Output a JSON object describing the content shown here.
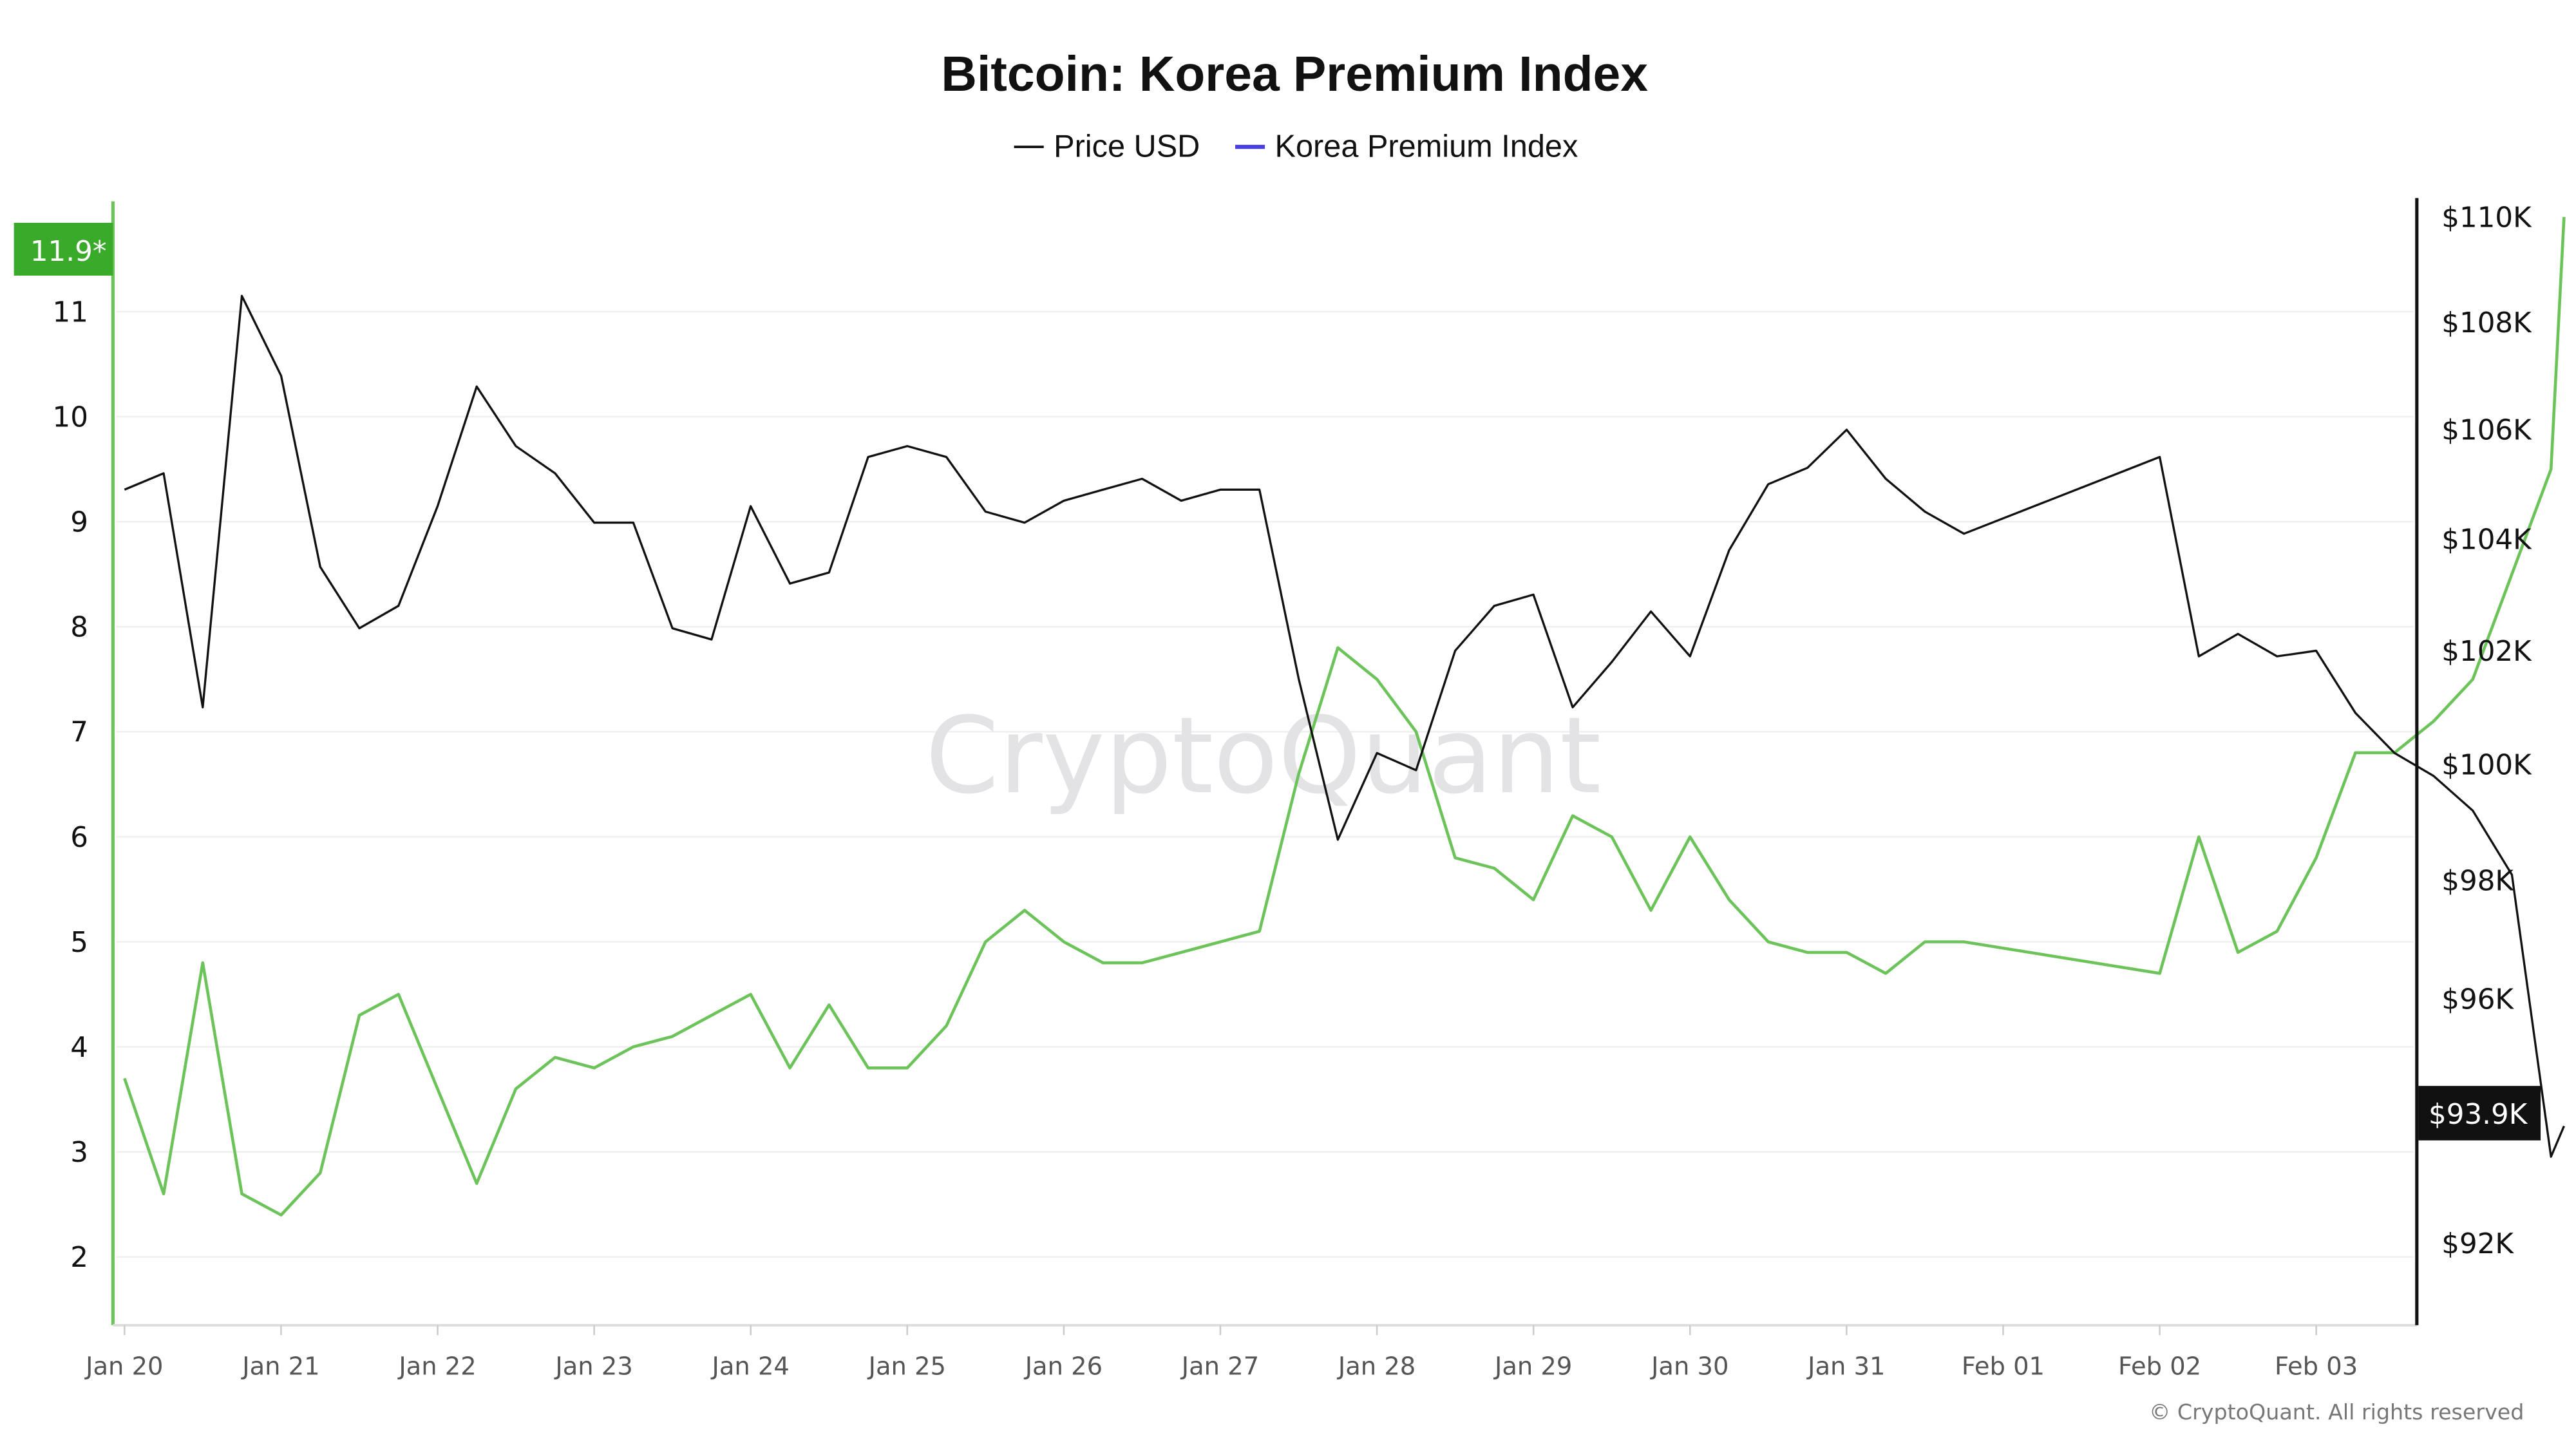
{
  "chart_data": {
    "type": "line",
    "title": "Bitcoin: Korea Premium Index",
    "watermark": "CryptoQuant",
    "copyright": "© CryptoQuant. All rights reserved",
    "legend": {
      "placement": "top-center",
      "items": [
        {
          "label": "Price USD",
          "color": "#111111"
        },
        {
          "label": "Korea Premium Index",
          "color": "#4a3fe0"
        }
      ]
    },
    "x_ticks": [
      "Jan 20",
      "Jan 21",
      "Jan 22",
      "Jan 23",
      "Jan 24",
      "Jan 25",
      "Jan 26",
      "Jan 27",
      "Jan 28",
      "Jan 29",
      "Jan 30",
      "Jan 31",
      "Feb 01",
      "Feb 02",
      "Feb 03"
    ],
    "left_axis": {
      "ticks": [
        "2",
        "3",
        "4",
        "5",
        "6",
        "7",
        "8",
        "9",
        "10",
        "11"
      ],
      "range": [
        1.35,
        12.05
      ],
      "scale": "linear",
      "current_label": "11.9*",
      "color": "#5cb54a"
    },
    "right_axis": {
      "ticks": [
        "$92K",
        "$94K",
        "$96K",
        "$98K",
        "$100K",
        "$102K",
        "$104K",
        "$106K",
        "$108K",
        "$110K"
      ],
      "tick_values": [
        92000,
        94000,
        96000,
        98000,
        100000,
        102000,
        104000,
        106000,
        108000,
        110000
      ],
      "range": [
        90700,
        110300
      ],
      "scale": "log",
      "current_label": "$93.9K"
    },
    "grid": true,
    "x": [
      "Jan 20 00:00",
      "Jan 20 06:00",
      "Jan 20 12:00",
      "Jan 20 18:00",
      "Jan 21 00:00",
      "Jan 21 06:00",
      "Jan 21 12:00",
      "Jan 21 18:00",
      "Jan 22 00:00",
      "Jan 22 06:00",
      "Jan 22 12:00",
      "Jan 22 18:00",
      "Jan 23 00:00",
      "Jan 23 06:00",
      "Jan 23 12:00",
      "Jan 23 18:00",
      "Jan 24 00:00",
      "Jan 24 06:00",
      "Jan 24 12:00",
      "Jan 24 18:00",
      "Jan 25 00:00",
      "Jan 25 06:00",
      "Jan 25 12:00",
      "Jan 25 18:00",
      "Jan 26 00:00",
      "Jan 26 06:00",
      "Jan 26 12:00",
      "Jan 26 18:00",
      "Jan 27 00:00",
      "Jan 27 06:00",
      "Jan 27 12:00",
      "Jan 27 18:00",
      "Jan 28 00:00",
      "Jan 28 06:00",
      "Jan 28 12:00",
      "Jan 28 18:00",
      "Jan 29 00:00",
      "Jan 29 06:00",
      "Jan 29 12:00",
      "Jan 29 18:00",
      "Jan 30 00:00",
      "Jan 30 06:00",
      "Jan 30 12:00",
      "Jan 30 18:00",
      "Jan 31 00:00",
      "Jan 31 06:00",
      "Jan 31 12:00",
      "Jan 31 18:00",
      "Feb 01 00:00",
      "Feb 01 06:00",
      "Feb 01 12:00",
      "Feb 01 18:00",
      "Feb 02 00:00",
      "Feb 02 06:00",
      "Feb 02 12:00",
      "Feb 02 18:00",
      "Feb 03 00:00",
      "Feb 03 06:00",
      "Feb 03 12:00",
      "Feb 03 14:00"
    ],
    "series": [
      {
        "name": "Price USD",
        "axis": "right",
        "color": "#111111",
        "values": [
          104900,
          105200,
          101000,
          108500,
          107000,
          103500,
          102400,
          102800,
          104600,
          106800,
          105700,
          105200,
          104300,
          104300,
          102400,
          102200,
          104600,
          103200,
          103400,
          105500,
          105700,
          105500,
          104500,
          104300,
          104700,
          104900,
          105100,
          104700,
          104900,
          104900,
          101500,
          98700,
          100200,
          99900,
          102000,
          102800,
          103000,
          101000,
          101800,
          102700,
          101900,
          103800,
          105000,
          105300,
          106000,
          105100,
          104500,
          104100,
          105500,
          101900,
          102300,
          101900,
          102000,
          100900,
          100200,
          99800,
          99200,
          98100,
          93400,
          93900
        ]
      },
      {
        "name": "Korea Premium Index",
        "axis": "left",
        "color": "#6cc35a",
        "values": [
          3.7,
          2.6,
          4.8,
          2.6,
          2.4,
          2.8,
          4.3,
          4.5,
          3.6,
          2.7,
          3.6,
          3.9,
          3.8,
          4.0,
          4.1,
          4.3,
          4.5,
          3.8,
          4.4,
          3.8,
          3.8,
          4.2,
          5.0,
          5.3,
          5.0,
          4.8,
          4.8,
          4.9,
          5.0,
          5.1,
          6.6,
          7.8,
          7.5,
          7.0,
          5.8,
          5.7,
          5.4,
          6.2,
          6.0,
          5.3,
          6.0,
          5.4,
          5.0,
          4.9,
          4.9,
          4.7,
          5.0,
          5.0,
          4.7,
          6.0,
          4.9,
          5.1,
          5.8,
          6.8,
          6.8,
          7.1,
          7.5,
          8.5,
          9.5,
          11.9
        ]
      }
    ]
  }
}
